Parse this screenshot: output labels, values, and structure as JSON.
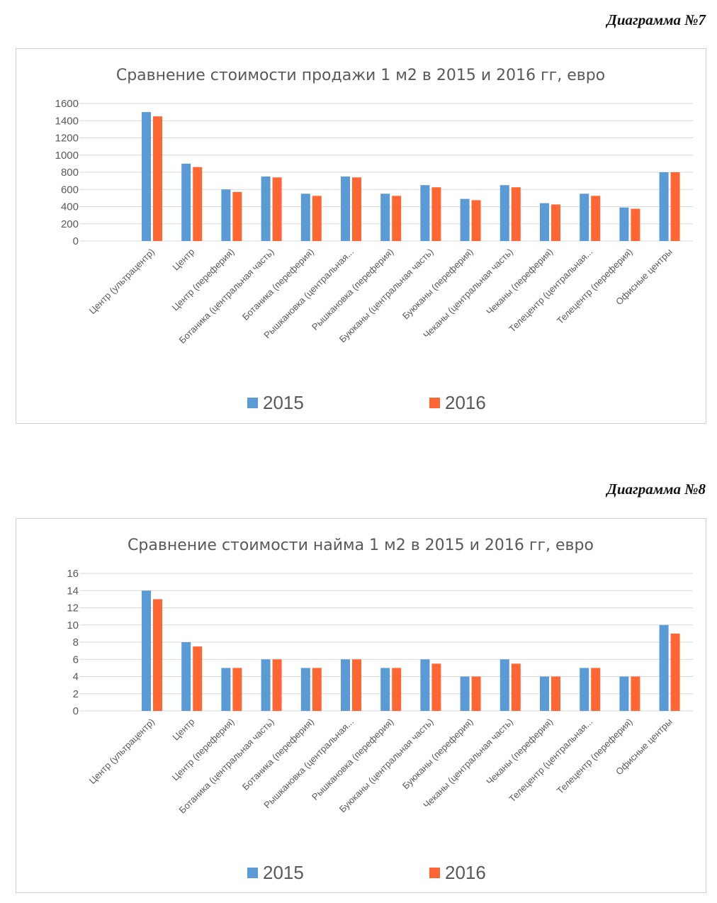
{
  "captions": [
    "Диаграмма №7",
    "Диаграмма №8"
  ],
  "colors": {
    "2015": "#5b9bd5",
    "2016": "#ff6633",
    "grid": "#d9d9d9",
    "text": "#595959"
  },
  "chart_data": [
    {
      "type": "bar",
      "title": "Сравнение стоимости продажи 1 м2 в 2015 и 2016 гг, евро",
      "categories": [
        "Центр (ультрацентр)",
        "Центр",
        "Центр (переферия)",
        "Ботаника (центральная часть)",
        "Ботаника (переферия)",
        "Рышкановка (центральная...",
        "Рышкановка (переферия)",
        "Буюканы (центральная часть)",
        "Буюканы (переферия)",
        "Чеканы (центральная часть)",
        "Чеканы (переферия)",
        "Телецентр (центральная...",
        "Телецентр (переферия)",
        "Офисные центры"
      ],
      "series": [
        {
          "name": "2015",
          "values": [
            1500,
            900,
            600,
            750,
            550,
            750,
            550,
            650,
            490,
            650,
            440,
            550,
            390,
            800
          ]
        },
        {
          "name": "2016",
          "values": [
            1450,
            860,
            570,
            740,
            525,
            740,
            525,
            625,
            475,
            625,
            425,
            525,
            375,
            800
          ]
        }
      ],
      "ylim": [
        0,
        1600
      ],
      "yticks": [
        "0",
        "200",
        "400",
        "600",
        "800",
        "1000",
        "1200",
        "1400",
        "1600"
      ],
      "grid": true,
      "legend": "bottom"
    },
    {
      "type": "bar",
      "title": "Сравнение стоимости найма 1 м2 в 2015 и 2016 гг, евро",
      "categories": [
        "Центр (ультрацентр)",
        "Центр",
        "Центр (переферия)",
        "Ботаника (центральная часть)",
        "Ботаника (переферия)",
        "Рышкановка (центральная...",
        "Рышкановка (переферия)",
        "Буюканы (центральная часть)",
        "Буюканы (переферия)",
        "Чеканы (центральная часть)",
        "Чеканы (переферия)",
        "Телецентр (центральная...",
        "Телецентр (переферия)",
        "Офисные центры"
      ],
      "series": [
        {
          "name": "2015",
          "values": [
            14,
            8,
            5,
            6,
            5,
            6,
            5,
            6,
            4,
            6,
            4,
            5,
            4,
            10
          ]
        },
        {
          "name": "2016",
          "values": [
            13,
            7.5,
            5,
            6,
            5,
            6,
            5,
            5.5,
            4,
            5.5,
            4,
            5,
            4,
            9
          ]
        }
      ],
      "ylim": [
        0,
        16
      ],
      "yticks": [
        "0",
        "2",
        "4",
        "6",
        "8",
        "10",
        "12",
        "14",
        "16"
      ],
      "grid": true,
      "legend": "bottom"
    }
  ]
}
